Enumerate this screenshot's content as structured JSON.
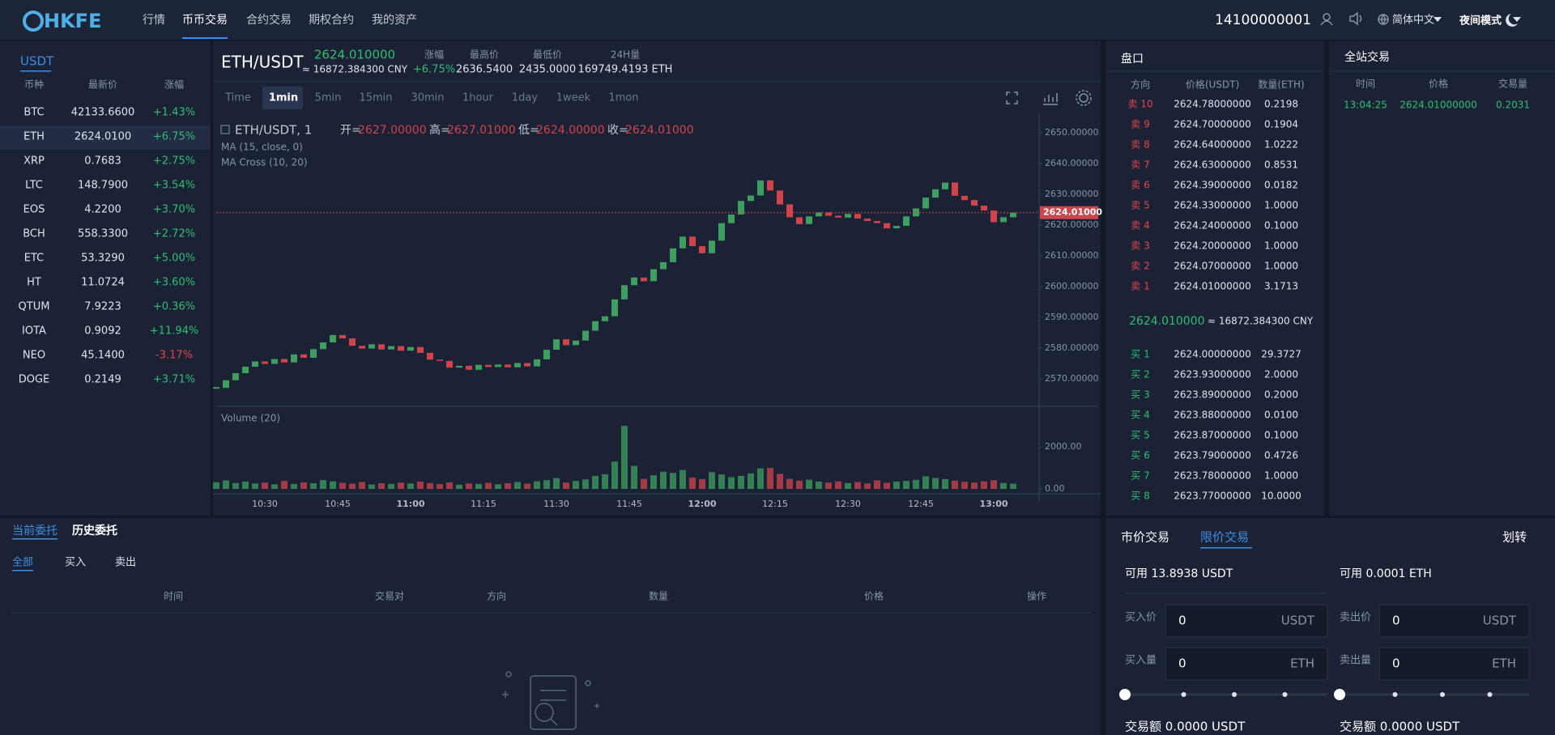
{
  "nav": {
    "logo": "HKFE",
    "items": [
      "行情",
      "币币交易",
      "合约交易",
      "期权合约",
      "我的资产"
    ],
    "account": "14100000001",
    "language": "简体中文",
    "mode": "夜间模式"
  },
  "market": {
    "tab": "USDT",
    "headers": [
      "币种",
      "最新价",
      "涨幅"
    ],
    "rows": [
      [
        "BTC",
        "42133.6600",
        "+1.43%"
      ],
      [
        "ETH",
        "2624.0100",
        "+6.75%"
      ],
      [
        "XRP",
        "0.7683",
        "+2.75%"
      ],
      [
        "LTC",
        "148.7900",
        "+3.54%"
      ],
      [
        "EOS",
        "4.2200",
        "+3.70%"
      ],
      [
        "BCH",
        "558.3300",
        "+2.72%"
      ],
      [
        "ETC",
        "53.3290",
        "+5.00%"
      ],
      [
        "HT",
        "11.0724",
        "+3.60%"
      ],
      [
        "QTUM",
        "7.9223",
        "+0.36%"
      ],
      [
        "IOTA",
        "0.9092",
        "+11.94%"
      ],
      [
        "NEO",
        "45.1400",
        "-3.17%"
      ],
      [
        "DOGE",
        "0.2149",
        "+3.71%"
      ]
    ]
  },
  "ticker": {
    "pair": "ETH/USDT",
    "price": "2624.010000",
    "cny": "≈ 16872.384300 CNY",
    "stats": [
      {
        "label": "涨幅",
        "value": "+6.75%"
      },
      {
        "label": "最高价",
        "value": "2636.5400"
      },
      {
        "label": "最低价",
        "value": "2435.0000"
      },
      {
        "label": "24H量",
        "value": "169749.4193 ETH"
      }
    ]
  },
  "intervals": [
    "Time",
    "1min",
    "5min",
    "15min",
    "30min",
    "1hour",
    "1day",
    "1week",
    "1mon"
  ],
  "chart_data": {
    "type": "candlestick",
    "title": "ETH/USDT, 1",
    "ohlc": [
      {
        "label": "开=",
        "value": "2627.00000"
      },
      {
        "label": "高=",
        "value": "2627.01000"
      },
      {
        "label": "低=",
        "value": "2624.00000"
      },
      {
        "label": "收=",
        "value": "2624.01000"
      }
    ],
    "indicators": [
      "MA (15, close, 0)",
      "MA Cross (10, 20)"
    ],
    "volume_title": "Volume (20)",
    "up_color": "#3f9f5f",
    "down_color": "#d2434b",
    "x": [
      "10:20",
      "10:22",
      "10:24",
      "10:26",
      "10:28",
      "10:30",
      "10:32",
      "10:34",
      "10:36",
      "10:38",
      "10:40",
      "10:42",
      "10:44",
      "10:46",
      "10:48",
      "10:50",
      "10:52",
      "10:54",
      "10:56",
      "10:58",
      "11:00",
      "11:02",
      "11:04",
      "11:06",
      "11:08",
      "11:10",
      "11:12",
      "11:14",
      "11:16",
      "11:18",
      "11:20",
      "11:22",
      "11:24",
      "11:26",
      "11:28",
      "11:30",
      "11:32",
      "11:34",
      "11:36",
      "11:38",
      "11:40",
      "11:42",
      "11:44",
      "11:46",
      "11:48",
      "11:50",
      "11:52",
      "11:54",
      "11:56",
      "11:58",
      "12:00",
      "12:02",
      "12:04",
      "12:06",
      "12:08",
      "12:10",
      "12:12",
      "12:14",
      "12:16",
      "12:18",
      "12:20",
      "12:22",
      "12:24",
      "12:26",
      "12:28",
      "12:30",
      "12:32",
      "12:34",
      "12:36",
      "12:38",
      "12:40",
      "12:42",
      "12:44",
      "12:46",
      "12:48",
      "12:50",
      "12:52",
      "12:54",
      "12:56",
      "12:58",
      "13:00",
      "13:02",
      "13:04"
    ],
    "close": [
      2567.0,
      2569.5,
      2571.8,
      2573.9,
      2575.6,
      2574.8,
      2576.4,
      2575.3,
      2577.9,
      2576.8,
      2579.6,
      2581.8,
      2584.2,
      2583.1,
      2580.7,
      2579.8,
      2581.2,
      2579.5,
      2580.6,
      2579.1,
      2580.3,
      2578.4,
      2576.2,
      2575.8,
      2573.6,
      2574.2,
      2572.9,
      2574.5,
      2573.8,
      2574.6,
      2573.7,
      2575.1,
      2574.0,
      2576.3,
      2579.4,
      2582.8,
      2580.9,
      2582.4,
      2585.6,
      2588.7,
      2590.3,
      2595.8,
      2600.4,
      2602.9,
      2601.7,
      2605.6,
      2607.9,
      2612.4,
      2616.2,
      2613.1,
      2610.8,
      2614.9,
      2620.6,
      2623.4,
      2627.8,
      2629.6,
      2634.5,
      2631.2,
      2626.7,
      2622.5,
      2620.3,
      2622.8,
      2624.1,
      2623.0,
      2622.4,
      2623.6,
      2622.1,
      2621.3,
      2620.6,
      2618.9,
      2619.7,
      2622.8,
      2625.4,
      2628.9,
      2631.6,
      2633.8,
      2629.5,
      2628.1,
      2626.3,
      2624.7,
      2620.9,
      2622.5,
      2624.01
    ],
    "volume": [
      320,
      410,
      280,
      350,
      260,
      300,
      220,
      380,
      240,
      310,
      270,
      420,
      360,
      290,
      250,
      330,
      210,
      270,
      240,
      300,
      260,
      350,
      280,
      230,
      310,
      200,
      260,
      240,
      290,
      220,
      270,
      330,
      250,
      360,
      420,
      510,
      300,
      380,
      450,
      620,
      700,
      1300,
      3000,
      1100,
      480,
      650,
      820,
      760,
      900,
      540,
      470,
      800,
      690,
      560,
      620,
      740,
      980,
      1000,
      720,
      480,
      390,
      440,
      350,
      300,
      360,
      280,
      330,
      260,
      410,
      290,
      350,
      380,
      430,
      600,
      520,
      470,
      390,
      340,
      300,
      360,
      420,
      280,
      250
    ],
    "ylim": [
      2561,
      2655
    ],
    "yticks": [
      {
        "value": 2570,
        "label": "2570.00000"
      },
      {
        "value": 2580,
        "label": "2580.00000"
      },
      {
        "value": 2590,
        "label": "2590.00000"
      },
      {
        "value": 2600,
        "label": "2600.00000"
      },
      {
        "value": 2610,
        "label": "2610.00000"
      },
      {
        "value": 2620,
        "label": "2620.00000"
      },
      {
        "value": 2630,
        "label": "2630.00000"
      },
      {
        "value": 2640,
        "label": "2640.00000"
      },
      {
        "value": 2650,
        "label": "2650.00000"
      }
    ],
    "last": {
      "value": 2624.01,
      "label": "2624.01000"
    },
    "volume_ylim": [
      0,
      3700
    ],
    "volume_yticks": [
      {
        "value": 0,
        "label": "0.00"
      },
      {
        "value": 2000,
        "label": "2000.00"
      }
    ],
    "xticks": [
      "10:30",
      "10:45",
      "11:00",
      "11:15",
      "11:30",
      "11:45",
      "12:00",
      "12:15",
      "12:30",
      "12:45",
      "13:00"
    ]
  },
  "orderbook": {
    "title": "盘口",
    "headers": [
      "方向",
      "价格(USDT)",
      "数量(ETH)"
    ],
    "asks": [
      [
        "卖 10",
        "2624.78000000",
        "0.2198"
      ],
      [
        "卖 9",
        "2624.70000000",
        "0.1904"
      ],
      [
        "卖 8",
        "2624.64000000",
        "1.0222"
      ],
      [
        "卖 7",
        "2624.63000000",
        "0.8531"
      ],
      [
        "卖 6",
        "2624.39000000",
        "0.0182"
      ],
      [
        "卖 5",
        "2624.33000000",
        "1.0000"
      ],
      [
        "卖 4",
        "2624.24000000",
        "0.1000"
      ],
      [
        "卖 3",
        "2624.20000000",
        "1.0000"
      ],
      [
        "卖 2",
        "2624.07000000",
        "1.0000"
      ],
      [
        "卖 1",
        "2624.01000000",
        "3.1713"
      ]
    ],
    "mid_price": "2624.010000",
    "mid_cny": "≈ 16872.384300 CNY",
    "bids": [
      [
        "买 1",
        "2624.00000000",
        "29.3727"
      ],
      [
        "买 2",
        "2623.93000000",
        "2.0000"
      ],
      [
        "买 3",
        "2623.89000000",
        "0.2000"
      ],
      [
        "买 4",
        "2623.88000000",
        "0.0100"
      ],
      [
        "买 5",
        "2623.87000000",
        "0.1000"
      ],
      [
        "买 6",
        "2623.79000000",
        "0.4726"
      ],
      [
        "买 7",
        "2623.78000000",
        "1.0000"
      ],
      [
        "买 8",
        "2623.77000000",
        "10.0000"
      ]
    ]
  },
  "trades": {
    "title": "全站交易",
    "headers": [
      "时间",
      "价格",
      "交易量"
    ],
    "rows": [
      [
        "13:04:25",
        "2624.01000000",
        "0.2031"
      ]
    ]
  },
  "orders": {
    "tabs": [
      "当前委托",
      "历史委托"
    ],
    "filters": [
      "全部",
      "买入",
      "卖出"
    ],
    "headers": [
      "时间",
      "交易对",
      "方向",
      "数量",
      "价格",
      "操作"
    ]
  },
  "trade_form": {
    "tabs": [
      "市价交易",
      "限价交易"
    ],
    "transfer": "划转",
    "buy": {
      "available": "可用 13.8938 USDT",
      "price_label": "买入价",
      "price": "0",
      "price_unit": "USDT",
      "amount_label": "买入量",
      "amount": "0",
      "amount_unit": "ETH",
      "total": "交易额 0.0000 USDT"
    },
    "sell": {
      "available": "可用 0.0001 ETH",
      "price_label": "卖出价",
      "price": "0",
      "price_unit": "USDT",
      "amount_label": "卖出量",
      "amount": "0",
      "amount_unit": "ETH",
      "total": "交易额 0.0000 USDT"
    }
  }
}
